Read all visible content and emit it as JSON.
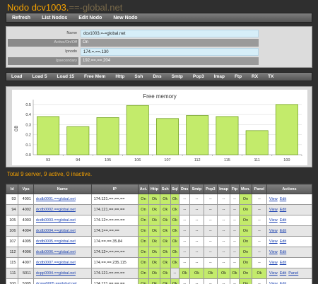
{
  "page": {
    "title_prefix": "Nodo dcv1003.",
    "title_hidden": "==-global.net"
  },
  "menu": [
    "Refresh",
    "List Nodos",
    "Edit Nodo",
    "New Nodo"
  ],
  "info": {
    "name": {
      "label": "Name",
      "value": "dcv1003.=-=global.net"
    },
    "monitor": {
      "label": "Active/On/Off",
      "value": "On"
    },
    "ipnodo": {
      "label": "Ipnodo",
      "value": "174.=.==.130"
    },
    "ipsecondary": {
      "label": "Ipsecondary",
      "value": "192.==.==.204"
    }
  },
  "tabs": [
    "Load",
    "Load 5",
    "Load 15",
    "Free Mem",
    "Http",
    "Ssh",
    "Dns",
    "Smtp",
    "Pop3",
    "Imap",
    "Ftp",
    "RX",
    "TX"
  ],
  "chart_data": {
    "type": "bar",
    "title": "Free memory",
    "ylabel": "GB",
    "categories": [
      "93",
      "94",
      "105",
      "106",
      "107",
      "112",
      "115",
      "111",
      "100"
    ],
    "values": [
      0.38,
      0.28,
      0.37,
      0.49,
      0.36,
      0.39,
      0.38,
      0.24,
      0.5
    ],
    "ylim": [
      0,
      0.52
    ],
    "yticks": [
      "0.5",
      "0.4",
      "0.3",
      "0.2",
      "0.1",
      "0.0"
    ],
    "bar_color": "#c3eb6b",
    "bar_stroke": "#6a9a1a",
    "grid": true
  },
  "summary": "Total 9 server, 9 active, 0 inactive.",
  "table": {
    "headers": [
      "Id",
      "Vps",
      "Name",
      "IP",
      "Act.",
      "Http",
      "Ssh",
      "Sql",
      "Dns",
      "Smtp",
      "Pop3",
      "Imap",
      "Ftp",
      "Mon.",
      "Panel",
      "Actions"
    ],
    "rows": [
      {
        "id": "93",
        "vps": "4001",
        "name": "dcdb0001.==global.net",
        "ip": "174.121.==.==.==",
        "act": "On",
        "http": "Ok",
        "ssh": "Ok",
        "sql": "Ok",
        "dns": "--",
        "smtp": "--",
        "pop3": "--",
        "imap": "--",
        "ftp": "--",
        "mon": "On",
        "panel": "--",
        "view": "View",
        "edit": "Edit",
        "panel_link": ""
      },
      {
        "id": "94",
        "vps": "4002",
        "name": "dcdb0002.==global.net",
        "ip": "174.121.==.==.==",
        "act": "On",
        "http": "Ok",
        "ssh": "Ok",
        "sql": "Ok",
        "dns": "--",
        "smtp": "--",
        "pop3": "--",
        "imap": "--",
        "ftp": "--",
        "mon": "On",
        "panel": "--",
        "view": "View",
        "edit": "Edit",
        "panel_link": ""
      },
      {
        "id": "105",
        "vps": "4003",
        "name": "dcdb0003.==global.net",
        "ip": "174.12=.==.==.==",
        "act": "On",
        "http": "Ok",
        "ssh": "Ok",
        "sql": "Ok",
        "dns": "--",
        "smtp": "--",
        "pop3": "--",
        "imap": "--",
        "ftp": "--",
        "mon": "On",
        "panel": "--",
        "view": "View",
        "edit": "Edit",
        "panel_link": ""
      },
      {
        "id": "106",
        "vps": "4004",
        "name": "dcdb0004.==global.net",
        "ip": "174.1==.==.==",
        "act": "On",
        "http": "Ok",
        "ssh": "Ok",
        "sql": "Ok",
        "dns": "--",
        "smtp": "--",
        "pop3": "--",
        "imap": "--",
        "ftp": "--",
        "mon": "On",
        "panel": "--",
        "view": "View",
        "edit": "Edit",
        "panel_link": ""
      },
      {
        "id": "107",
        "vps": "4005",
        "name": "dcdb0005.==global.net",
        "ip": "174.==.==.35.84",
        "act": "On",
        "http": "Ok",
        "ssh": "Ok",
        "sql": "Ok",
        "dns": "--",
        "smtp": "--",
        "pop3": "--",
        "imap": "--",
        "ftp": "--",
        "mon": "On",
        "panel": "--",
        "view": "View",
        "edit": "Edit",
        "panel_link": ""
      },
      {
        "id": "112",
        "vps": "4006",
        "name": "dcdb0006.==global.net",
        "ip": "174.12=.==.==.==",
        "act": "On",
        "http": "Ok",
        "ssh": "Ok",
        "sql": "Ok",
        "dns": "--",
        "smtp": "--",
        "pop3": "--",
        "imap": "--",
        "ftp": "--",
        "mon": "On",
        "panel": "--",
        "view": "View",
        "edit": "Edit",
        "panel_link": ""
      },
      {
        "id": "115",
        "vps": "4007",
        "name": "dcdb0007.==global.net",
        "ip": "174.==.==.235.115",
        "act": "On",
        "http": "Ok",
        "ssh": "Ok",
        "sql": "Ok",
        "dns": "--",
        "smtp": "--",
        "pop3": "--",
        "imap": "--",
        "ftp": "--",
        "mon": "On",
        "panel": "--",
        "view": "View",
        "edit": "Edit",
        "panel_link": ""
      },
      {
        "id": "111",
        "vps": "5011",
        "name": "dcpp0004.==global.net",
        "ip": "174.121.==.==.==",
        "act": "On",
        "http": "Ok",
        "ssh": "Ok",
        "sql": "--",
        "dns": "Ok",
        "smtp": "Ok",
        "pop3": "Ok",
        "imap": "Ok",
        "ftp": "Ok",
        "mon": "On",
        "panel": "Ok",
        "view": "View",
        "edit": "Edit",
        "panel_link": "Panel"
      },
      {
        "id": "100",
        "vps": "5005",
        "name": "dcww0005.==global.net",
        "ip": "174.121.==.==.==",
        "act": "On",
        "http": "Ok",
        "ssh": "Ok",
        "sql": "Ok",
        "dns": "--",
        "smtp": "--",
        "pop3": "--",
        "imap": "--",
        "ftp": "--",
        "mon": "On",
        "panel": "--",
        "view": "View",
        "edit": "Edit",
        "panel_link": ""
      }
    ]
  }
}
